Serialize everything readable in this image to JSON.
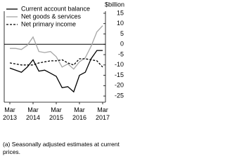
{
  "chart_data": {
    "type": "line",
    "y_label": "$billion",
    "note": "(a) Seasonally adjusted estimates at current prices.",
    "categories": [
      "Mar 2013",
      null,
      null,
      null,
      "Mar 2014",
      null,
      null,
      null,
      "Mar 2015",
      null,
      null,
      null,
      "Mar 2016",
      null,
      null,
      null,
      "Mar 2017"
    ],
    "series": [
      {
        "name": "Current account balance",
        "color": "#000000",
        "dash": false,
        "values": [
          -11.5,
          -12.5,
          -13.5,
          -11,
          -7.5,
          -13,
          -12.5,
          -14,
          -15.5,
          -21,
          -20.5,
          -23,
          -15,
          -13.5,
          -7,
          -3,
          -3
        ]
      },
      {
        "name": "Net goods & services",
        "color": "#a6a6a6",
        "dash": false,
        "values": [
          -2,
          -2,
          -2.5,
          -0.5,
          3.5,
          -3.5,
          -4,
          -3.5,
          -6,
          -11,
          -9.5,
          -12,
          -8.5,
          -6.5,
          -1,
          6,
          9
        ]
      },
      {
        "name": "Net primary income",
        "color": "#000000",
        "dash": true,
        "values": [
          -9,
          -9.5,
          -10,
          -10,
          -10,
          -9,
          -8.5,
          -8,
          -8,
          -7.5,
          -9,
          -10,
          -7,
          -7,
          -7.5,
          -8,
          -11
        ]
      }
    ],
    "ylim": [
      -28,
      16
    ],
    "yticks": [
      15,
      10,
      5,
      0,
      -5,
      -10,
      -15,
      -20,
      -25
    ]
  }
}
